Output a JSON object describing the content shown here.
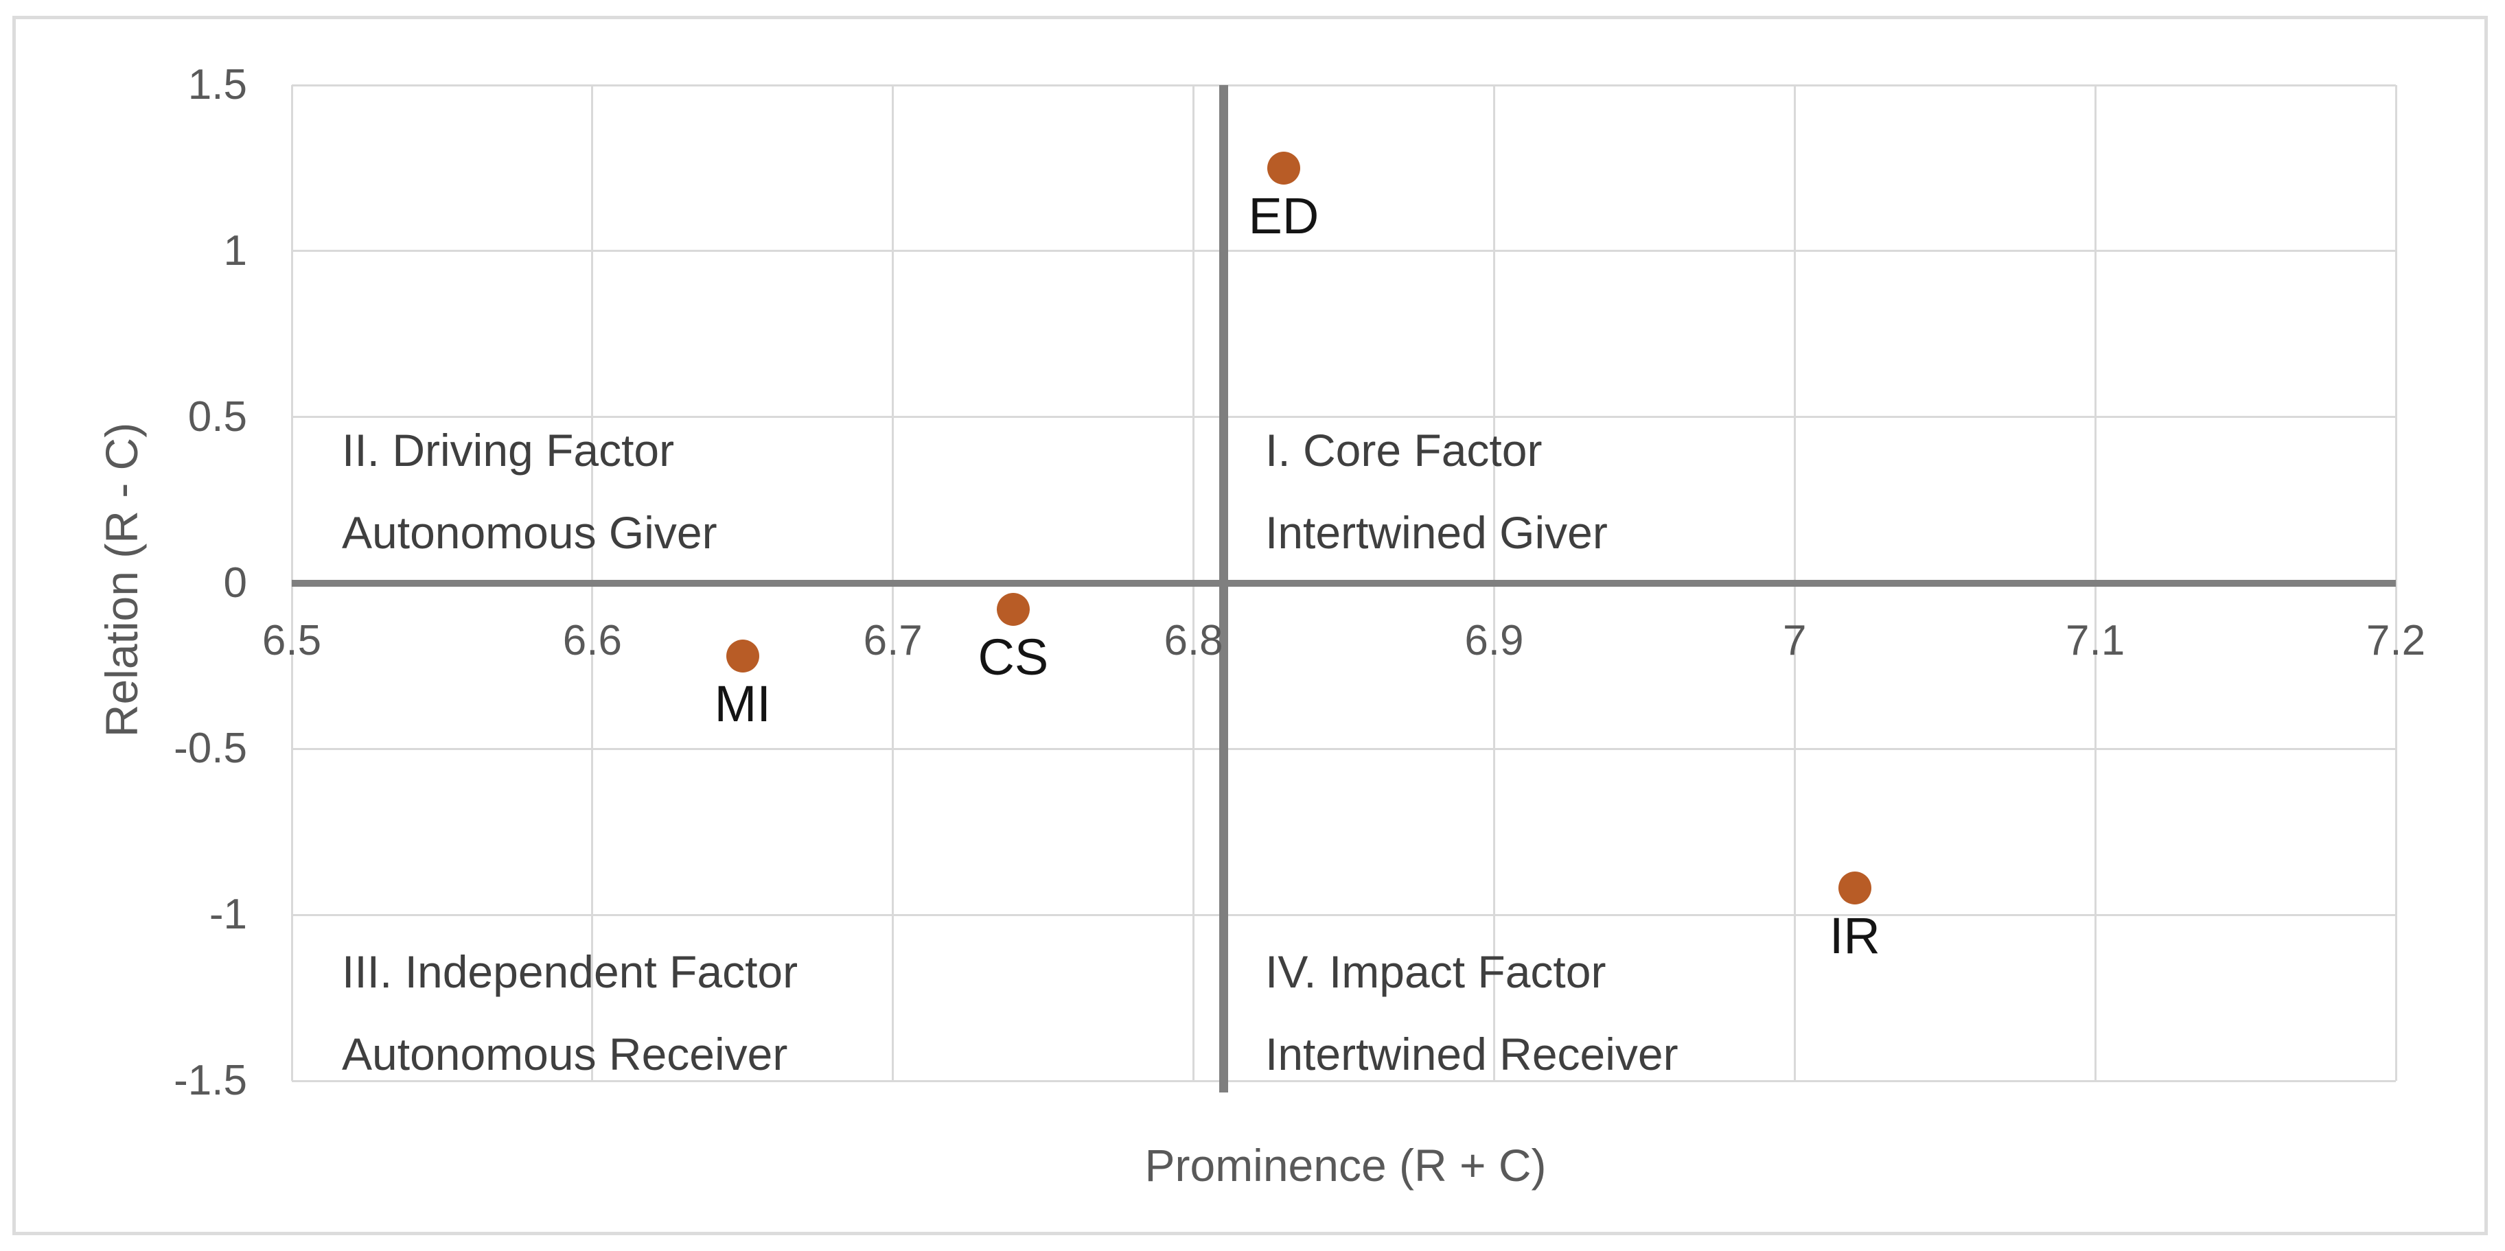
{
  "chart_data": {
    "type": "scatter",
    "title": "",
    "xlabel": "Prominence (R + C)",
    "ylabel": "Relation (R - C)",
    "xlim": [
      6.5,
      7.2
    ],
    "ylim": [
      -1.5,
      1.5
    ],
    "x_ticks": [
      {
        "label": "6.5",
        "value": 6.5
      },
      {
        "label": "6.6",
        "value": 6.6
      },
      {
        "label": "6.7",
        "value": 6.7
      },
      {
        "label": "6.8",
        "value": 6.8
      },
      {
        "label": "6.9",
        "value": 6.9
      },
      {
        "label": "7",
        "value": 7.0
      },
      {
        "label": "7.1",
        "value": 7.1
      },
      {
        "label": "7.2",
        "value": 7.2
      }
    ],
    "y_ticks": [
      {
        "label": "1.5",
        "value": 1.5
      },
      {
        "label": "1",
        "value": 1.0
      },
      {
        "label": "0.5",
        "value": 0.5
      },
      {
        "label": "0",
        "value": 0.0
      },
      {
        "label": "-0.5",
        "value": -0.5
      },
      {
        "label": "-1",
        "value": -1.0
      },
      {
        "label": "-1.5",
        "value": -1.5
      }
    ],
    "grid": true,
    "legend": "none",
    "points": [
      {
        "label": "ED",
        "x": 6.83,
        "y": 1.25
      },
      {
        "label": "CS",
        "x": 6.74,
        "y": -0.08
      },
      {
        "label": "MI",
        "x": 6.65,
        "y": -0.22
      },
      {
        "label": "IR",
        "x": 7.02,
        "y": -0.92
      }
    ],
    "divider_x": 6.81,
    "divider_y": 0,
    "quadrant_labels": [
      {
        "id": "I",
        "position": "top-right",
        "lines": [
          "I. Core Factor",
          "Intertwined Giver"
        ]
      },
      {
        "id": "II",
        "position": "top-left",
        "lines": [
          "II. Driving Factor",
          "Autonomous Giver"
        ]
      },
      {
        "id": "III",
        "position": "bottom-left",
        "lines": [
          "III. Independent Factor",
          "Autonomous Receiver"
        ]
      },
      {
        "id": "IV",
        "position": "bottom-right",
        "lines": [
          "IV. Impact Factor",
          "Intertwined Receiver"
        ]
      }
    ],
    "colors": {
      "point": "#b85c26",
      "point_label_text": "#141414",
      "divider_line": "#7f7f7f",
      "gridline": "#d9d9d9",
      "tick_text": "#595959",
      "axis_title_text": "#595959",
      "quadrant_text": "#3f3f3f",
      "frame_border": "#dcdcdc",
      "background": "#ffffff"
    }
  }
}
